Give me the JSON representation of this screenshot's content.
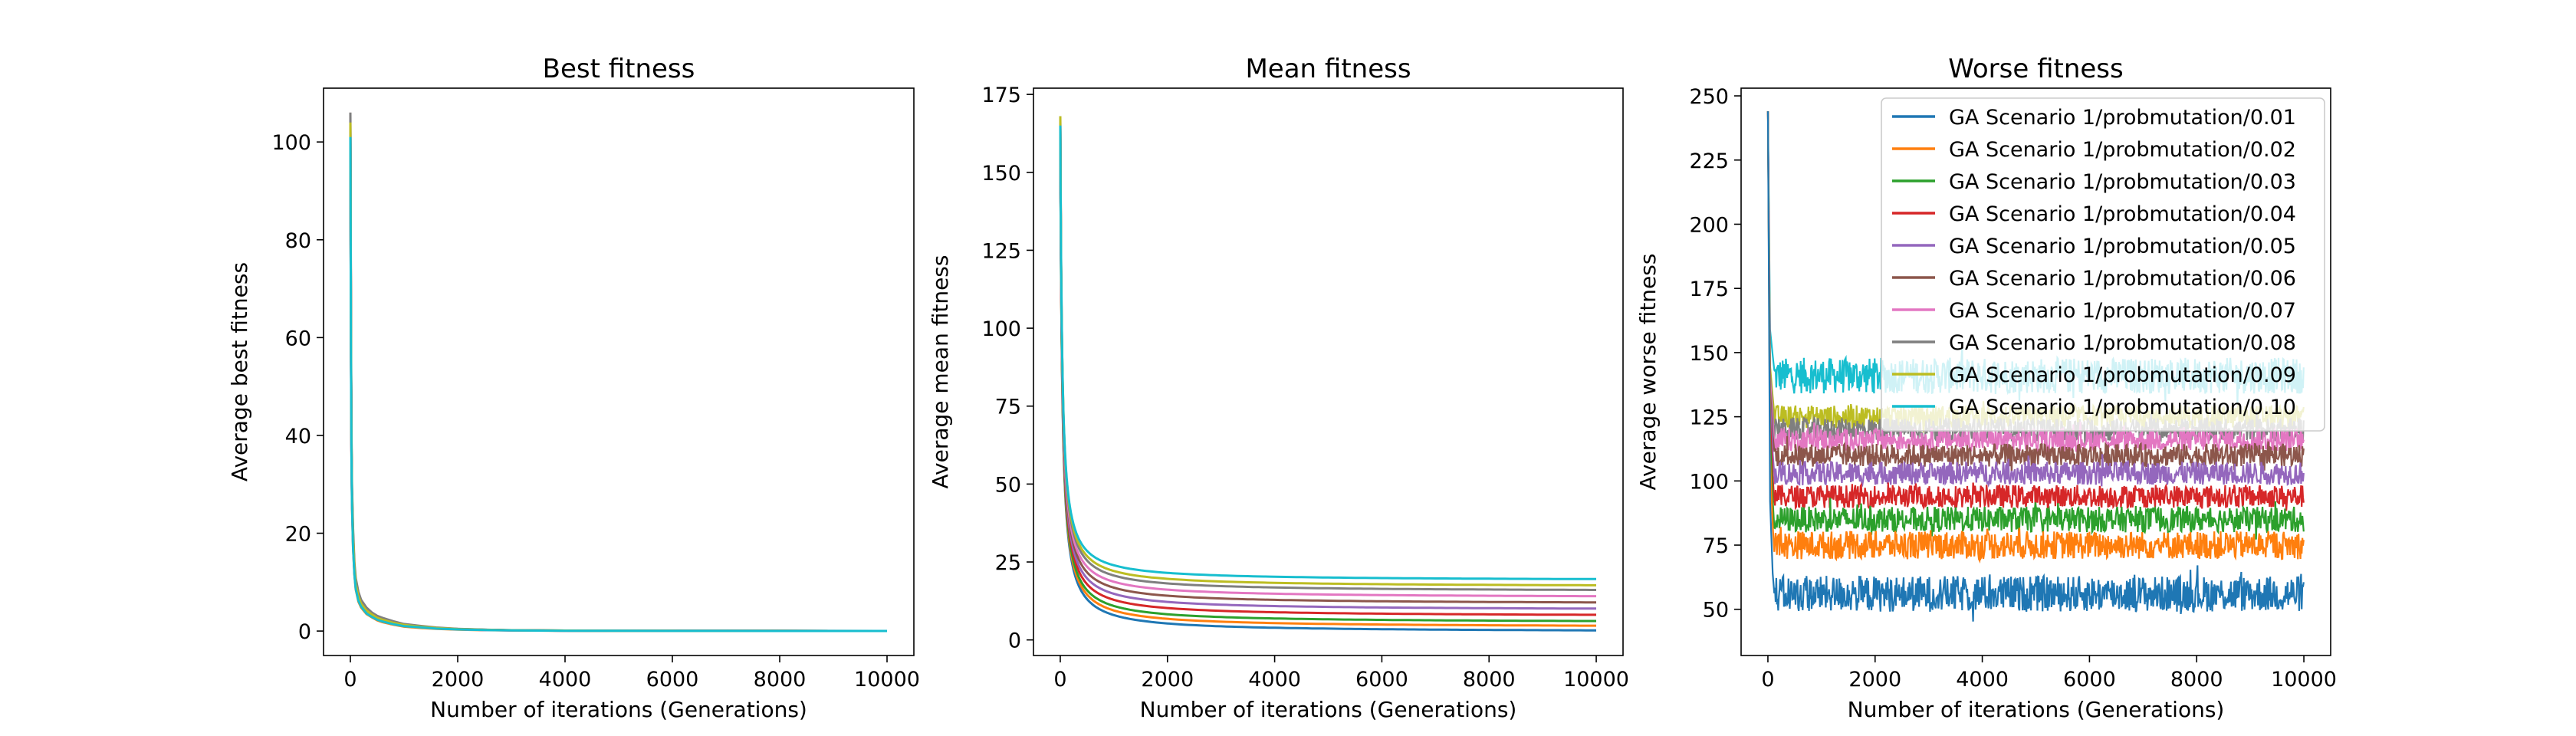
{
  "chart_data": [
    {
      "type": "line",
      "title": "Best fitness",
      "xlabel": "Number of iterations (Generations)",
      "ylabel": "Average best fitness",
      "xlim": [
        -500,
        10500
      ],
      "ylim": [
        -5,
        111
      ],
      "xticks": [
        0,
        2000,
        4000,
        6000,
        8000,
        10000
      ],
      "yticks": [
        0,
        20,
        40,
        60,
        80,
        100
      ],
      "x_points": [
        0,
        5,
        10,
        20,
        30,
        50,
        75,
        100,
        150,
        200,
        300,
        400,
        500,
        600,
        800,
        1000,
        1300,
        1600,
        2000,
        2500,
        3000,
        4000,
        5000,
        6000,
        7000,
        8000,
        9000,
        10000
      ],
      "series_values": [
        [
          102,
          81,
          62,
          38,
          27,
          18,
          12,
          9,
          6.5,
          5.2,
          3.9,
          3.1,
          2.5,
          2.1,
          1.5,
          1.1,
          0.8,
          0.55,
          0.35,
          0.22,
          0.15,
          0.08,
          0.05,
          0.04,
          0.03,
          0.03,
          0.02,
          0.02
        ],
        [
          101,
          80,
          61,
          37,
          26,
          17,
          11.5,
          8.5,
          6,
          4.8,
          3.5,
          2.8,
          2.2,
          1.8,
          1.3,
          0.9,
          0.65,
          0.45,
          0.3,
          0.18,
          0.12,
          0.07,
          0.04,
          0.03,
          0.03,
          0.02,
          0.02,
          0.02
        ],
        [
          104,
          83,
          63,
          39,
          28,
          19,
          12.5,
          9.5,
          7,
          5.5,
          4.1,
          3.3,
          2.7,
          2.3,
          1.7,
          1.2,
          0.9,
          0.6,
          0.4,
          0.25,
          0.16,
          0.09,
          0.05,
          0.04,
          0.03,
          0.03,
          0.02,
          0.02
        ],
        [
          102,
          82,
          62,
          38,
          27,
          18.5,
          12,
          9.2,
          6.8,
          5.4,
          4,
          3.2,
          2.6,
          2.2,
          1.6,
          1.15,
          0.85,
          0.58,
          0.38,
          0.24,
          0.15,
          0.08,
          0.05,
          0.04,
          0.03,
          0.03,
          0.02,
          0.02
        ],
        [
          103,
          82,
          62,
          38,
          27,
          18,
          12,
          9,
          6.6,
          5.3,
          3.9,
          3.1,
          2.5,
          2.1,
          1.5,
          1.1,
          0.8,
          0.55,
          0.36,
          0.22,
          0.14,
          0.08,
          0.05,
          0.04,
          0.03,
          0.03,
          0.02,
          0.02
        ],
        [
          106,
          85,
          64,
          40,
          29,
          20,
          13,
          10,
          7.4,
          5.9,
          4.4,
          3.5,
          2.9,
          2.5,
          1.8,
          1.3,
          0.95,
          0.65,
          0.42,
          0.26,
          0.17,
          0.1,
          0.06,
          0.04,
          0.03,
          0.03,
          0.02,
          0.02
        ],
        [
          101,
          80,
          61,
          37,
          26,
          17.5,
          11.8,
          8.8,
          6.4,
          5.1,
          3.7,
          3,
          2.4,
          2,
          1.45,
          1.05,
          0.78,
          0.52,
          0.34,
          0.21,
          0.14,
          0.08,
          0.05,
          0.04,
          0.03,
          0.02,
          0.02,
          0.02
        ],
        [
          106,
          86,
          66,
          41,
          30,
          21,
          14,
          10.8,
          8,
          6.4,
          4.8,
          3.8,
          3.1,
          2.7,
          2,
          1.45,
          1.05,
          0.72,
          0.46,
          0.28,
          0.18,
          0.1,
          0.06,
          0.05,
          0.04,
          0.03,
          0.03,
          0.02
        ],
        [
          104,
          83,
          63,
          39,
          28,
          19,
          12.8,
          9.6,
          7.1,
          5.6,
          4.2,
          3.4,
          2.7,
          2.3,
          1.7,
          1.25,
          0.9,
          0.62,
          0.4,
          0.25,
          0.16,
          0.09,
          0.05,
          0.04,
          0.03,
          0.03,
          0.02,
          0.02
        ],
        [
          101,
          80,
          60,
          36,
          26,
          17,
          11.5,
          8.6,
          6.2,
          5,
          3.6,
          2.9,
          2.3,
          1.95,
          1.4,
          1,
          0.75,
          0.5,
          0.33,
          0.2,
          0.13,
          0.07,
          0.04,
          0.03,
          0.03,
          0.02,
          0.02,
          0.02
        ]
      ]
    },
    {
      "type": "line",
      "title": "Mean fitness",
      "xlabel": "Number of iterations (Generations)",
      "ylabel": "Average mean fitness",
      "xlim": [
        -500,
        10500
      ],
      "ylim": [
        -5,
        177
      ],
      "xticks": [
        0,
        2000,
        4000,
        6000,
        8000,
        10000
      ],
      "yticks": [
        0,
        25,
        50,
        75,
        100,
        125,
        150,
        175
      ],
      "start_values": [
        164,
        165,
        165,
        166,
        166,
        167,
        166,
        168,
        168,
        165
      ],
      "floor_values": [
        2.5,
        4,
        5.5,
        7.5,
        9.5,
        11.5,
        13.5,
        15.5,
        17,
        19
      ]
    },
    {
      "type": "line",
      "title": "Worse fitness",
      "xlabel": "Number of iterations (Generations)",
      "ylabel": "Average worse fitness",
      "xlim": [
        -500,
        10500
      ],
      "ylim": [
        32,
        253
      ],
      "xticks": [
        0,
        2000,
        4000,
        6000,
        8000,
        10000
      ],
      "yticks": [
        50,
        75,
        100,
        125,
        150,
        175,
        200,
        225,
        250
      ],
      "start_value": 244,
      "band_centers": [
        56,
        75,
        85,
        94,
        103,
        110,
        116,
        120,
        125,
        141
      ],
      "band_halfwidths": [
        7,
        5.5,
        5,
        4.5,
        4.5,
        4.5,
        4.5,
        4.5,
        4.5,
        7
      ],
      "legend_position": "upper right"
    }
  ],
  "series": [
    {
      "name": "GA Scenario 1/probmutation/0.01",
      "color": "#1f77b4"
    },
    {
      "name": "GA Scenario 1/probmutation/0.02",
      "color": "#ff7f0e"
    },
    {
      "name": "GA Scenario 1/probmutation/0.03",
      "color": "#2ca02c"
    },
    {
      "name": "GA Scenario 1/probmutation/0.04",
      "color": "#d62728"
    },
    {
      "name": "GA Scenario 1/probmutation/0.05",
      "color": "#9467bd"
    },
    {
      "name": "GA Scenario 1/probmutation/0.06",
      "color": "#8c564b"
    },
    {
      "name": "GA Scenario 1/probmutation/0.07",
      "color": "#e377c2"
    },
    {
      "name": "GA Scenario 1/probmutation/0.08",
      "color": "#7f7f7f"
    },
    {
      "name": "GA Scenario 1/probmutation/0.09",
      "color": "#bcbd22"
    },
    {
      "name": "GA Scenario 1/probmutation/0.10",
      "color": "#17becf"
    }
  ]
}
